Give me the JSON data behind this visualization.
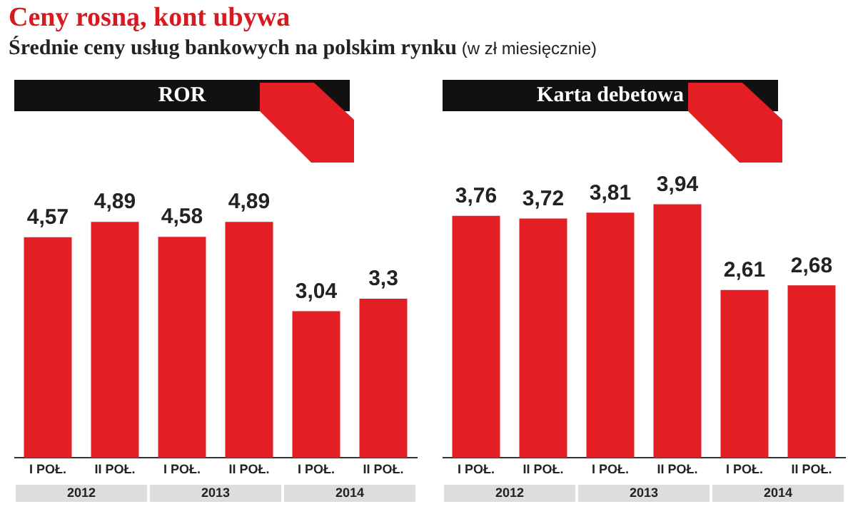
{
  "chart_data": [
    {
      "type": "other",
      "title": "Ceny rosną, kont ubywa",
      "subtitle": "Średnie ceny usług bankowych na polskim rynku",
      "annotations": [
        "(w zł miesięcznie)"
      ]
    },
    {
      "type": "bar",
      "title": "ROR",
      "categories": [
        "I POŁ.",
        "II POŁ.",
        "I POŁ.",
        "II POŁ.",
        "I POŁ.",
        "II POŁ."
      ],
      "values": [
        4.57,
        4.89,
        4.58,
        4.89,
        3.04,
        3.3
      ],
      "value_labels": [
        "4,57",
        "4,89",
        "4,58",
        "4,89",
        "3,04",
        "3,3"
      ],
      "color": "#e31e24",
      "annotations": [
        "2012",
        "2013",
        "2014"
      ],
      "grid": false,
      "tick_labels": "x"
    },
    {
      "type": "bar",
      "title": "Karta debetowa",
      "categories": [
        "I POŁ.",
        "II POŁ.",
        "I POŁ.",
        "II POŁ.",
        "I POŁ.",
        "II POŁ."
      ],
      "values": [
        3.76,
        3.72,
        3.81,
        3.94,
        2.61,
        2.68
      ],
      "value_labels": [
        "3,76",
        "3,72",
        "3,81",
        "3,94",
        "2,61",
        "2,68"
      ],
      "color": "#e31e24",
      "annotations": [
        "2012",
        "2013",
        "2014"
      ],
      "grid": false,
      "tick_labels": "x"
    }
  ]
}
